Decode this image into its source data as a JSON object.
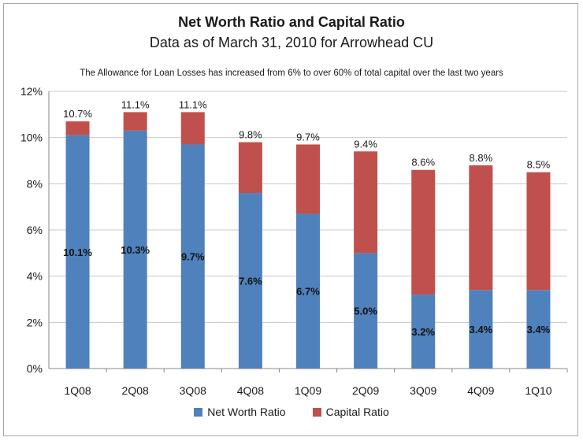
{
  "chart_data": {
    "type": "bar",
    "stacked": true,
    "title": "Net Worth Ratio and Capital Ratio",
    "subtitle": "Data as of March 31, 2010 for Arrowhead CU",
    "annotation": "The Allowance for Loan Losses has increased from 6% to over 60% of total capital over the last two years",
    "categories": [
      "1Q08",
      "2Q08",
      "3Q08",
      "4Q08",
      "1Q09",
      "2Q09",
      "3Q09",
      "4Q09",
      "1Q10"
    ],
    "series": [
      {
        "name": "Net Worth Ratio",
        "color": "#4f81bd",
        "values": [
          10.1,
          10.3,
          9.7,
          7.6,
          6.7,
          5.0,
          3.2,
          3.4,
          3.4
        ],
        "labels": [
          "10.1%",
          "10.3%",
          "9.7%",
          "7.6%",
          "6.7%",
          "5.0%",
          "3.2%",
          "3.4%",
          "3.4%"
        ]
      },
      {
        "name": "Capital Ratio",
        "color": "#c0504d",
        "totals": [
          10.7,
          11.1,
          11.1,
          9.8,
          9.7,
          9.4,
          8.6,
          8.8,
          8.5
        ],
        "labels": [
          "10.7%",
          "11.1%",
          "11.1%",
          "9.8%",
          "9.7%",
          "9.4%",
          "8.6%",
          "8.8%",
          "8.5%"
        ]
      }
    ],
    "ylim": [
      0,
      12
    ],
    "yticks": [
      "0%",
      "2%",
      "4%",
      "6%",
      "8%",
      "10%",
      "12%"
    ],
    "ytick_values": [
      0,
      2,
      4,
      6,
      8,
      10,
      12
    ],
    "grid": true,
    "legend": "bottom"
  }
}
